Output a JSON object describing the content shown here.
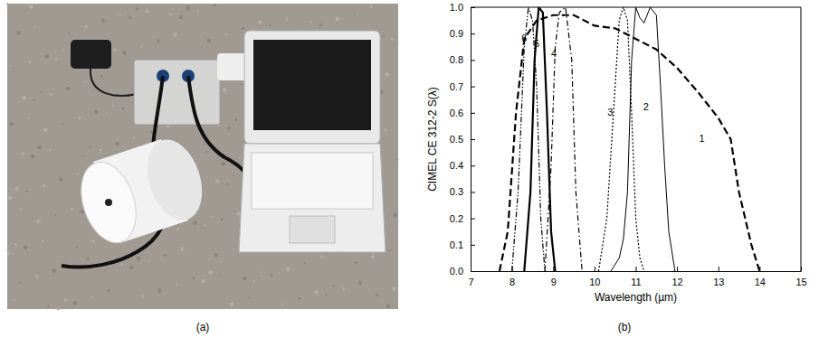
{
  "figure": {
    "panel_labels": [
      "(a)",
      "(b)"
    ]
  },
  "chart_data": {
    "type": "line",
    "x_label": "Wavelength (µm)",
    "y_label": "CIMEL CE 312-2  S(λ)",
    "xlim": [
      7,
      15
    ],
    "xticks": [
      7,
      8,
      9,
      10,
      11,
      12,
      13,
      14,
      15
    ],
    "ylim": [
      0,
      1
    ],
    "yticks": [
      {
        "value": 0,
        "label": "0.0"
      },
      {
        "value": 0.1,
        "label": "0.1"
      },
      {
        "value": 0.2,
        "label": "0.2"
      },
      {
        "value": 0.3,
        "label": "0.3"
      },
      {
        "value": 0.4,
        "label": "0.4"
      },
      {
        "value": 0.5,
        "label": "0.5"
      },
      {
        "value": 0.6,
        "label": "0.6"
      },
      {
        "value": 0.7,
        "label": "0.7"
      },
      {
        "value": 0.8,
        "label": "0.8"
      },
      {
        "value": 0.9,
        "label": "0.9"
      },
      {
        "value": 1,
        "label": "1.0"
      }
    ],
    "grid": false,
    "series": [
      {
        "color": "#000000",
        "line_style": "dashed",
        "x": [
          7.7,
          7.9,
          8.1,
          8.3,
          8.6,
          9.0,
          9.5,
          10.0,
          10.5,
          11.0,
          11.5,
          12.0,
          12.5,
          13.0,
          13.3,
          13.5,
          13.8,
          14.0
        ],
        "values": [
          0,
          0.15,
          0.6,
          0.88,
          0.95,
          0.97,
          0.97,
          0.93,
          0.92,
          0.88,
          0.84,
          0.77,
          0.68,
          0.58,
          0.5,
          0.3,
          0.1,
          0
        ]
      },
      {
        "color": "#000000",
        "line_style": "solid",
        "x": [
          10.4,
          10.6,
          10.7,
          10.8,
          10.9,
          11.0,
          11.1,
          11.2,
          11.35,
          11.5,
          11.6,
          11.7,
          11.8,
          11.95
        ],
        "values": [
          0,
          0.05,
          0.12,
          0.3,
          0.8,
          1.0,
          0.96,
          0.94,
          1.0,
          0.97,
          0.7,
          0.4,
          0.15,
          0
        ]
      },
      {
        "color": "#000000",
        "line_style": "dotted",
        "x": [
          10.1,
          10.3,
          10.5,
          10.6,
          10.7,
          10.8,
          10.9,
          11.0,
          11.1,
          11.2
        ],
        "values": [
          0,
          0.2,
          0.7,
          0.95,
          1.0,
          0.95,
          0.6,
          0.2,
          0.05,
          0
        ]
      },
      {
        "color": "#000000",
        "line_style": "dashdot",
        "x": [
          8.8,
          8.95,
          9.05,
          9.15,
          9.3,
          9.45,
          9.55,
          9.7
        ],
        "values": [
          0,
          0.4,
          0.85,
          0.98,
          1.0,
          0.8,
          0.3,
          0
        ]
      },
      {
        "color": "#000000",
        "line_style": "solid",
        "x": [
          8.3,
          8.45,
          8.55,
          8.65,
          8.75,
          8.85,
          8.95,
          9.05
        ],
        "values": [
          0,
          0.3,
          0.8,
          1.0,
          0.98,
          0.6,
          0.15,
          0
        ]
      },
      {
        "color": "#000000",
        "line_style": "dashdotdot",
        "x": [
          8.0,
          8.15,
          8.3,
          8.4,
          8.5,
          8.6,
          8.7,
          8.8
        ],
        "values": [
          0,
          0.3,
          0.85,
          1.0,
          0.95,
          0.7,
          0.2,
          0
        ]
      }
    ],
    "annotations": [
      {
        "text": "1",
        "x": 12.6,
        "y": 0.5
      },
      {
        "text": "2",
        "x": 11.25,
        "y": 0.62
      },
      {
        "text": "3",
        "x": 10.38,
        "y": 0.6
      },
      {
        "text": "4",
        "x": 9.02,
        "y": 0.82
      },
      {
        "text": "5",
        "x": 8.6,
        "y": 0.86
      },
      {
        "text": "6",
        "x": 8.3,
        "y": 0.88
      }
    ]
  }
}
